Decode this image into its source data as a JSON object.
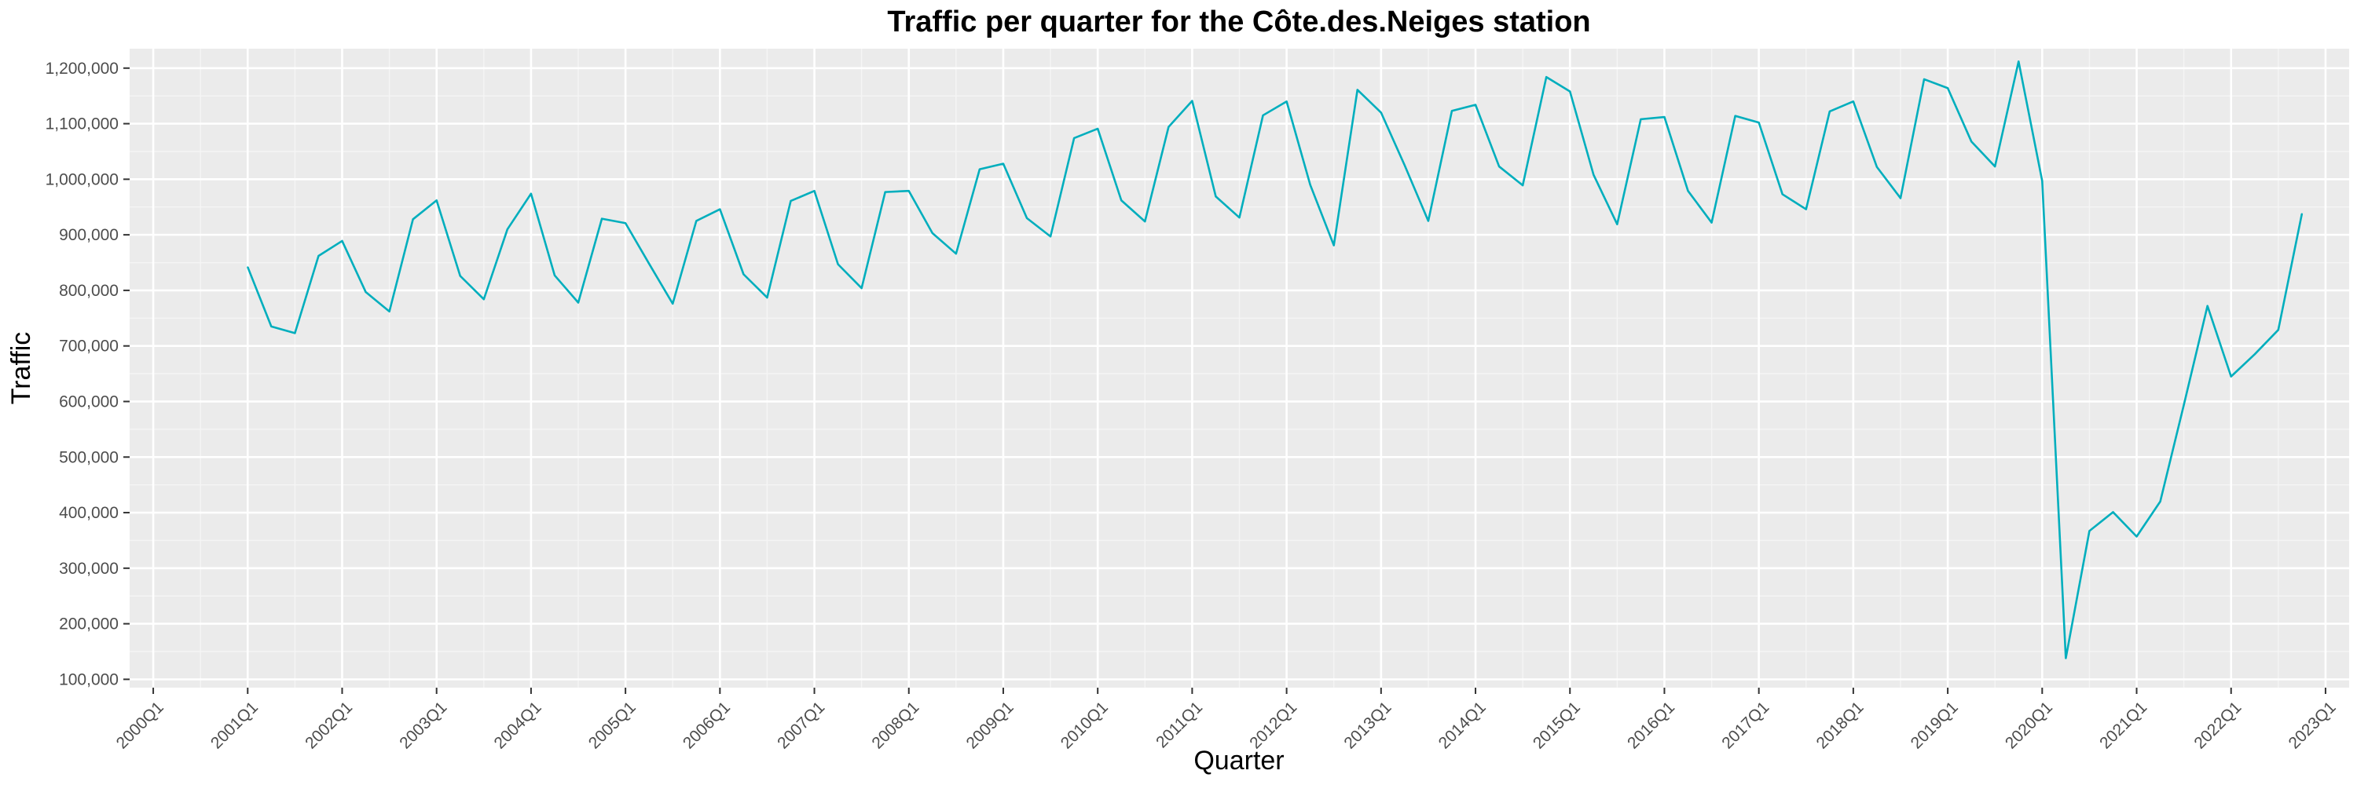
{
  "chart_data": {
    "type": "line",
    "title": "Traffic per quarter for the Côte.des.Neiges station",
    "xlabel": "Quarter",
    "ylabel": "Traffic",
    "x_tick_labels": [
      "2000Q1",
      "2001Q1",
      "2002Q1",
      "2003Q1",
      "2004Q1",
      "2005Q1",
      "2006Q1",
      "2007Q1",
      "2008Q1",
      "2009Q1",
      "2010Q1",
      "2011Q1",
      "2012Q1",
      "2013Q1",
      "2014Q1",
      "2015Q1",
      "2016Q1",
      "2017Q1",
      "2018Q1",
      "2019Q1",
      "2020Q1",
      "2021Q1",
      "2022Q1",
      "2023Q1"
    ],
    "y_tick_labels": [
      "100,000",
      "200,000",
      "300,000",
      "400,000",
      "500,000",
      "600,000",
      "700,000",
      "800,000",
      "900,000",
      "1,000,000",
      "1,100,000",
      "1,200,000"
    ],
    "y_ticks": [
      100000,
      200000,
      300000,
      400000,
      500000,
      600000,
      700000,
      800000,
      900000,
      1000000,
      1100000,
      1200000
    ],
    "ylim": [
      85000,
      1235000
    ],
    "xlim": [
      "1999Q4",
      "2023Q2"
    ],
    "grid": true,
    "background": "#ebebeb",
    "line_color": "#00aebd",
    "series": [
      {
        "x": [
          "2001Q1",
          "2001Q2",
          "2001Q3",
          "2001Q4",
          "2002Q1",
          "2002Q2",
          "2002Q3",
          "2002Q4",
          "2003Q1",
          "2003Q2",
          "2003Q3",
          "2003Q4",
          "2004Q1",
          "2004Q2",
          "2004Q3",
          "2004Q4",
          "2005Q1",
          "2005Q2",
          "2005Q3",
          "2005Q4",
          "2006Q1",
          "2006Q2",
          "2006Q3",
          "2006Q4",
          "2007Q1",
          "2007Q2",
          "2007Q3",
          "2007Q4",
          "2008Q1",
          "2008Q2",
          "2008Q3",
          "2008Q4",
          "2009Q1",
          "2009Q2",
          "2009Q3",
          "2009Q4",
          "2010Q1",
          "2010Q2",
          "2010Q3",
          "2010Q4",
          "2011Q1",
          "2011Q2",
          "2011Q3",
          "2011Q4",
          "2012Q1",
          "2012Q2",
          "2012Q3",
          "2012Q4",
          "2013Q1",
          "2013Q2",
          "2013Q3",
          "2013Q4",
          "2014Q1",
          "2014Q2",
          "2014Q3",
          "2014Q4",
          "2015Q1",
          "2015Q2",
          "2015Q3",
          "2015Q4",
          "2016Q1",
          "2016Q2",
          "2016Q3",
          "2016Q4",
          "2017Q1",
          "2017Q2",
          "2017Q3",
          "2017Q4",
          "2018Q1",
          "2018Q2",
          "2018Q3",
          "2018Q4",
          "2019Q1",
          "2019Q2",
          "2019Q3",
          "2019Q4",
          "2020Q1",
          "2020Q2",
          "2020Q3",
          "2020Q4",
          "2021Q1",
          "2021Q2",
          "2021Q3",
          "2021Q4",
          "2022Q1",
          "2022Q2",
          "2022Q3",
          "2022Q4"
        ],
        "values": [
          842000,
          735000,
          723000,
          862000,
          889000,
          797000,
          762000,
          928000,
          962000,
          826000,
          784000,
          910000,
          974000,
          827000,
          778000,
          929000,
          921000,
          848000,
          776000,
          925000,
          946000,
          829000,
          787000,
          961000,
          979000,
          847000,
          804000,
          977000,
          979000,
          903000,
          866000,
          1018000,
          1028000,
          930000,
          897000,
          1074000,
          1091000,
          962000,
          924000,
          1094000,
          1141000,
          969000,
          931000,
          1115000,
          1140000,
          990000,
          881000,
          1161000,
          1120000,
          1025000,
          925000,
          1123000,
          1134000,
          1023000,
          989000,
          1184000,
          1158000,
          1008000,
          919000,
          1108000,
          1112000,
          979000,
          922000,
          1114000,
          1102000,
          973000,
          946000,
          1122000,
          1140000,
          1022000,
          966000,
          1180000,
          1164000,
          1068000,
          1023000,
          1212000,
          997000,
          138000,
          367000,
          401000,
          357000,
          420000,
          594000,
          772000,
          645000,
          685000,
          729000,
          938000
        ]
      }
    ]
  }
}
